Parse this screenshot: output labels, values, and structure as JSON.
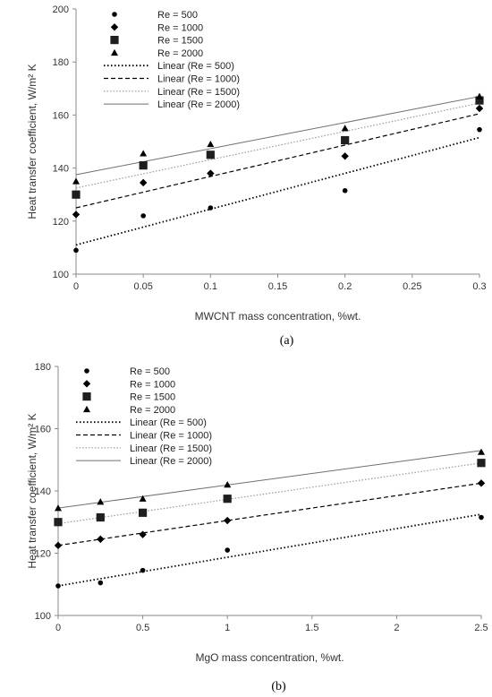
{
  "chart_data": [
    {
      "type": "scatter",
      "caption": "(a)",
      "xlabel": "MWCNT mass concentration, %wt.",
      "ylabel": "Heat transfer coefficient, W/m² K",
      "xlim": [
        0,
        0.3
      ],
      "ylim": [
        100,
        200
      ],
      "xticks": [
        "0",
        "0.05",
        "0.1",
        "0.15",
        "0.2",
        "0.25",
        "0.3"
      ],
      "yticks": [
        "100",
        "120",
        "140",
        "160",
        "180",
        "200"
      ],
      "xtick_values": [
        0,
        0.05,
        0.1,
        0.15,
        0.2,
        0.25,
        0.3
      ],
      "ytick_values": [
        100,
        120,
        140,
        160,
        180,
        200
      ],
      "grid": false,
      "legend_position": "top-left",
      "x": [
        0,
        0.05,
        0.1,
        0.2,
        0.3
      ],
      "series": [
        {
          "name": "Re = 500",
          "marker": "circle",
          "values": [
            109,
            122,
            125,
            131.5,
            154.5
          ]
        },
        {
          "name": "Re = 1000",
          "marker": "diamond",
          "values": [
            122.5,
            134.5,
            138,
            144.5,
            162.5
          ]
        },
        {
          "name": "Re = 1500",
          "marker": "square",
          "values": [
            130,
            141,
            145,
            150.5,
            165.5
          ]
        },
        {
          "name": "Re = 2000",
          "marker": "triangle",
          "values": [
            135,
            145.5,
            149,
            155,
            167
          ]
        }
      ],
      "trendlines": [
        {
          "name": "Linear (Re = 500)",
          "style": "dotted",
          "y0": 111,
          "y1": 151.5
        },
        {
          "name": "Linear (Re = 1000)",
          "style": "dashed",
          "y0": 125,
          "y1": 160.5
        },
        {
          "name": "Linear (Re = 1500)",
          "style": "light-dotted",
          "y0": 132.5,
          "y1": 164.5
        },
        {
          "name": "Linear (Re = 2000)",
          "style": "solid",
          "y0": 137.5,
          "y1": 167
        }
      ]
    },
    {
      "type": "scatter",
      "caption": "(b)",
      "xlabel": "MgO mass concentration, %wt.",
      "ylabel": "Heat transfer coefficient, W/m² K",
      "xlim": [
        0,
        2.5
      ],
      "ylim": [
        100,
        180
      ],
      "xticks": [
        "0",
        "0.5",
        "1",
        "1.5",
        "2",
        "2.5"
      ],
      "yticks": [
        "100",
        "120",
        "140",
        "160",
        "180"
      ],
      "xtick_values": [
        0,
        0.5,
        1,
        1.5,
        2,
        2.5
      ],
      "ytick_values": [
        100,
        120,
        140,
        160,
        180
      ],
      "grid": false,
      "legend_position": "top-left",
      "x": [
        0,
        0.25,
        0.5,
        1,
        2.5
      ],
      "series": [
        {
          "name": "Re = 500",
          "marker": "circle",
          "values": [
            109.5,
            110.5,
            114.5,
            121,
            131.5
          ]
        },
        {
          "name": "Re = 1000",
          "marker": "diamond",
          "values": [
            122.5,
            124.5,
            126,
            130.5,
            142.5
          ]
        },
        {
          "name": "Re = 1500",
          "marker": "square",
          "values": [
            130,
            131.5,
            133,
            137.5,
            149
          ]
        },
        {
          "name": "Re = 2000",
          "marker": "triangle",
          "values": [
            134.5,
            136.5,
            137.5,
            142,
            152.5
          ]
        }
      ],
      "trendlines": [
        {
          "name": "Linear (Re = 500)",
          "style": "dotted",
          "y0": 109.5,
          "y1": 132.5
        },
        {
          "name": "Linear (Re = 1000)",
          "style": "dashed",
          "y0": 122.5,
          "y1": 142.5
        },
        {
          "name": "Linear (Re = 1500)",
          "style": "light-dotted",
          "y0": 129.5,
          "y1": 149
        },
        {
          "name": "Linear (Re = 2000)",
          "style": "solid",
          "y0": 134.5,
          "y1": 153
        }
      ]
    }
  ]
}
